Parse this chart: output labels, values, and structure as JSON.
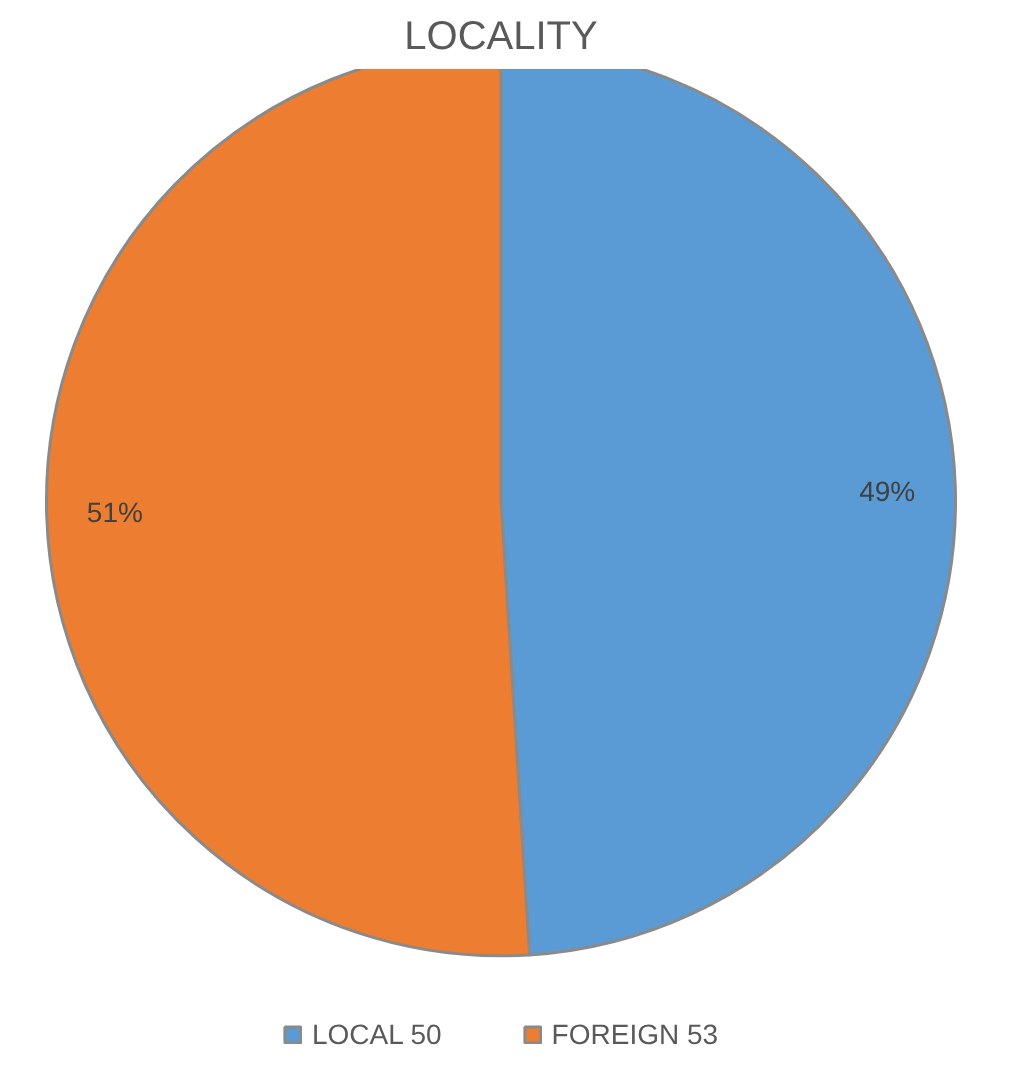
{
  "chart_data": {
    "type": "pie",
    "title": "LOCALITY",
    "categories": [
      "LOCAL 50",
      "FOREIGN 53"
    ],
    "values": [
      49,
      51
    ],
    "colors": [
      "#5b9bd5",
      "#ed7d31"
    ],
    "value_labels": [
      "49%",
      "51%"
    ],
    "legend": "bottom"
  }
}
